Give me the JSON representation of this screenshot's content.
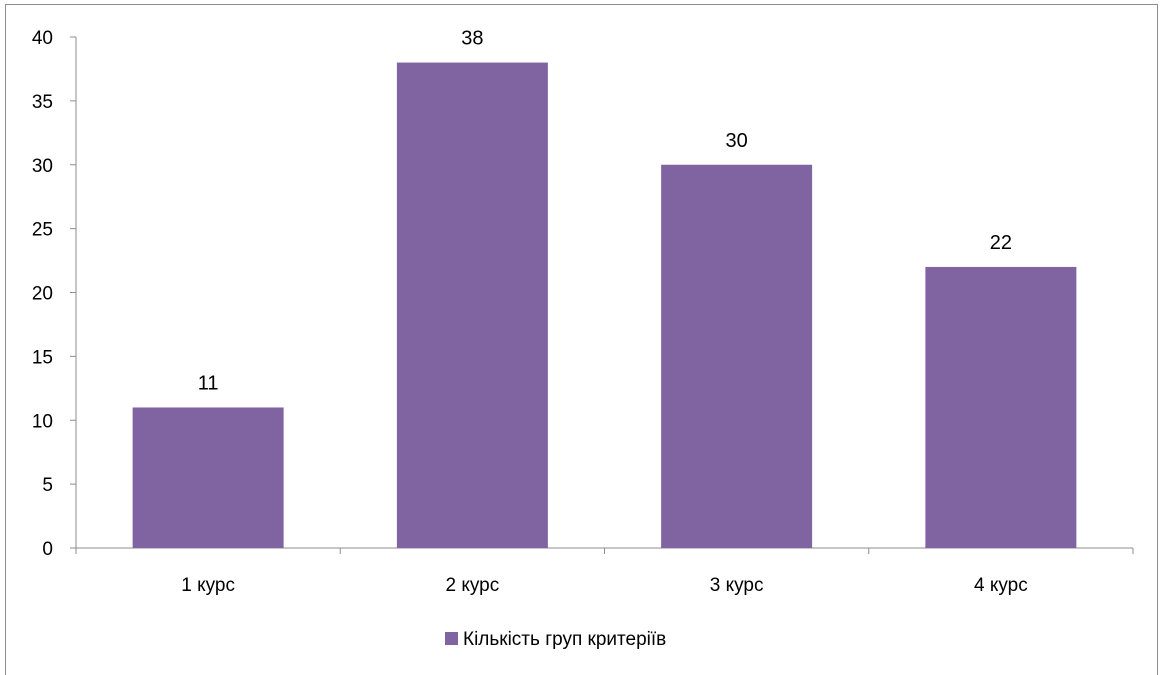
{
  "chart_data": {
    "type": "bar",
    "categories": [
      "1 курс",
      "2 курс",
      "3 курс",
      "4 курс"
    ],
    "series": [
      {
        "name": "Кількість груп критеріїв",
        "values": [
          11,
          38,
          30,
          22
        ],
        "color": "#8064a2"
      }
    ],
    "data_labels": [
      "11",
      "38",
      "30",
      "22"
    ],
    "y_ticks": [
      "0",
      "5",
      "10",
      "15",
      "20",
      "25",
      "30",
      "35",
      "40"
    ],
    "ylim": [
      0,
      40
    ],
    "title": "",
    "xlabel": "",
    "ylabel": "",
    "grid": false,
    "legend_position": "bottom"
  }
}
